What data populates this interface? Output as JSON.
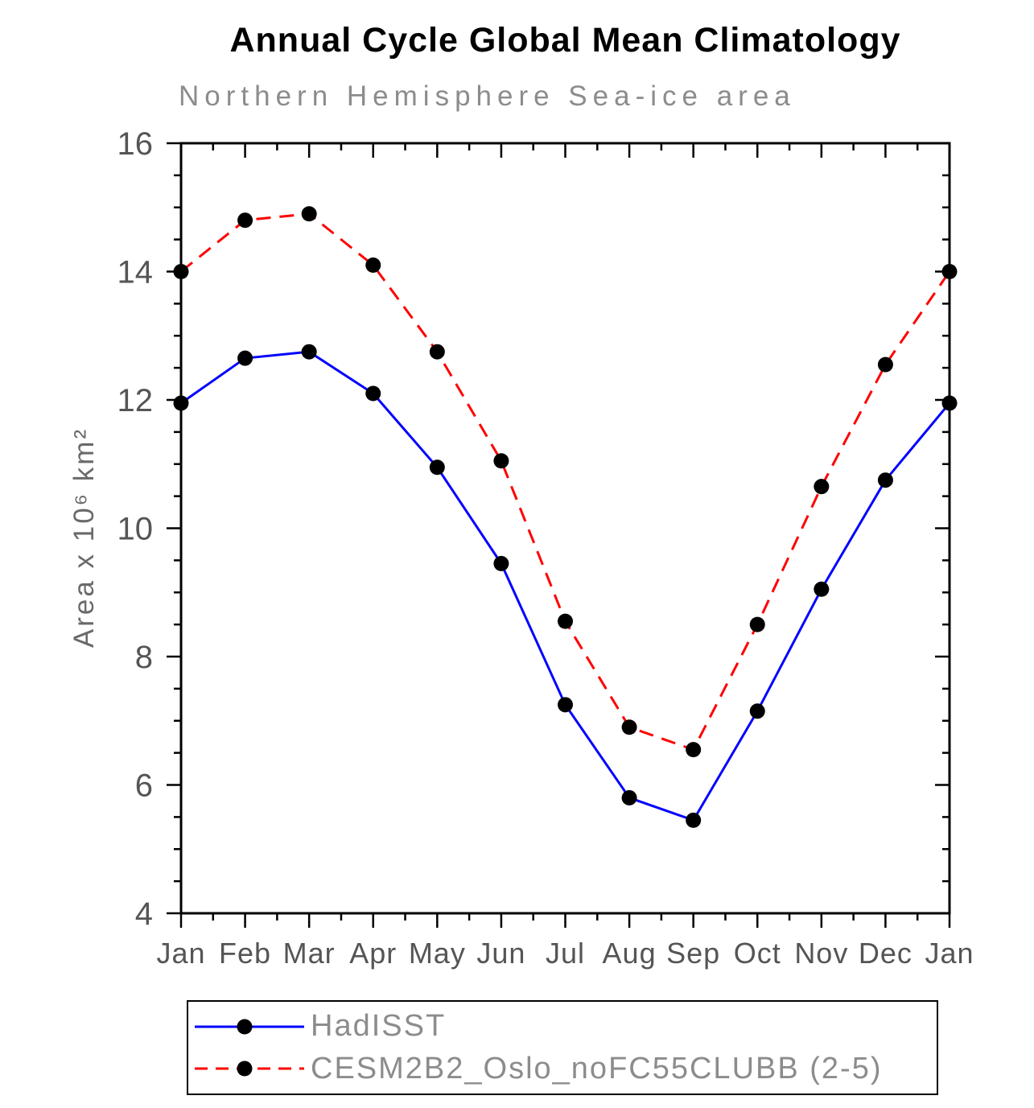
{
  "chart_data": {
    "type": "line",
    "title": "Annual Cycle Global Mean Climatology",
    "subtitle": "Northern Hemisphere Sea-ice area",
    "ylabel": "Area x 10⁶ km²",
    "xlabel": "",
    "ylim": [
      4,
      16
    ],
    "ytick_major": 2,
    "ytick_minor": 0.5,
    "grid": false,
    "legend_position": "bottom",
    "marker": "filled-circle",
    "marker_color": "#000000",
    "axis_color": "#000000",
    "categories": [
      "Jan",
      "Feb",
      "Mar",
      "Apr",
      "May",
      "Jun",
      "Jul",
      "Aug",
      "Sep",
      "Oct",
      "Nov",
      "Dec",
      "Jan"
    ],
    "series": [
      {
        "name": "HadISST",
        "color": "#0000ff",
        "style": "solid",
        "values": [
          11.95,
          12.65,
          12.75,
          12.1,
          10.95,
          9.45,
          7.25,
          5.8,
          5.45,
          7.15,
          9.05,
          10.75,
          11.95
        ]
      },
      {
        "name": "CESM2B2_Oslo_noFC55CLUBB (2-5)",
        "color": "#ff0000",
        "style": "dashed",
        "values": [
          14.0,
          14.8,
          14.9,
          14.1,
          12.75,
          11.05,
          8.55,
          6.9,
          6.55,
          8.5,
          10.65,
          12.55,
          14.0
        ]
      }
    ]
  }
}
